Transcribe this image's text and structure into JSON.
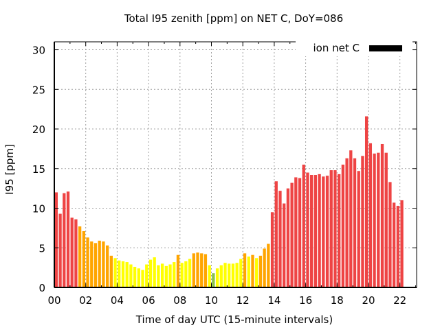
{
  "chart_data": {
    "type": "bar",
    "title": "Total I95 zenith [ppm] on NET C, DoY=086",
    "xlabel": "Time of day UTC (15-minute intervals)",
    "ylabel": "I95 [ppm]",
    "ylim": [
      0,
      31
    ],
    "yticks": [
      0,
      5,
      10,
      15,
      20,
      25,
      30
    ],
    "xticks": [
      "00",
      "02",
      "04",
      "06",
      "08",
      "10",
      "12",
      "14",
      "16",
      "18",
      "20",
      "22"
    ],
    "x_interval_minutes": 15,
    "grid": true,
    "legend": {
      "label": "ion net C",
      "color": "#000000",
      "position": "top-right"
    },
    "color_scale": {
      "green": "#8bc34a",
      "yellow": "#ffff00",
      "orange": "#ffa500",
      "red": "#ee4444"
    },
    "series": [
      {
        "name": "ion net C",
        "values": [
          12.0,
          9.3,
          11.9,
          12.1,
          8.8,
          8.6,
          7.7,
          7.1,
          6.3,
          5.8,
          5.6,
          5.9,
          5.8,
          5.3,
          4.0,
          3.7,
          3.4,
          3.3,
          3.2,
          2.9,
          2.6,
          2.4,
          2.2,
          2.9,
          3.5,
          3.8,
          2.8,
          3.0,
          2.7,
          2.9,
          3.2,
          4.1,
          3.1,
          3.3,
          3.6,
          4.3,
          4.4,
          4.3,
          4.2,
          2.8,
          1.8,
          2.4,
          2.8,
          3.1,
          3.0,
          3.0,
          3.1,
          3.6,
          4.3,
          3.9,
          4.1,
          3.7,
          4.0,
          4.9,
          5.5,
          9.5,
          13.4,
          12.2,
          10.6,
          12.5,
          13.2,
          13.9,
          13.8,
          15.5,
          14.5,
          14.2,
          14.2,
          14.3,
          14.0,
          14.1,
          14.8,
          14.8,
          14.3,
          15.5,
          16.3,
          17.3,
          16.3,
          14.7,
          16.6,
          21.6,
          18.2,
          16.9,
          17.0,
          18.1,
          17.0,
          13.3,
          10.7,
          10.3,
          11.0
        ],
        "colors": [
          "red",
          "red",
          "red",
          "red",
          "red",
          "red",
          "orange",
          "orange",
          "orange",
          "orange",
          "orange",
          "orange",
          "orange",
          "orange",
          "orange",
          "yellow",
          "yellow",
          "yellow",
          "yellow",
          "yellow",
          "yellow",
          "yellow",
          "yellow",
          "yellow",
          "yellow",
          "yellow",
          "yellow",
          "yellow",
          "yellow",
          "yellow",
          "yellow",
          "orange",
          "yellow",
          "yellow",
          "yellow",
          "orange",
          "orange",
          "orange",
          "orange",
          "yellow",
          "green",
          "yellow",
          "yellow",
          "yellow",
          "yellow",
          "yellow",
          "yellow",
          "yellow",
          "orange",
          "yellow",
          "orange",
          "yellow",
          "orange",
          "orange",
          "orange",
          "red",
          "red",
          "red",
          "red",
          "red",
          "red",
          "red",
          "red",
          "red",
          "red",
          "red",
          "red",
          "red",
          "red",
          "red",
          "red",
          "red",
          "red",
          "red",
          "red",
          "red",
          "red",
          "red",
          "red",
          "red",
          "red",
          "red",
          "red",
          "red",
          "red",
          "red",
          "red",
          "red",
          "red"
        ]
      }
    ]
  }
}
